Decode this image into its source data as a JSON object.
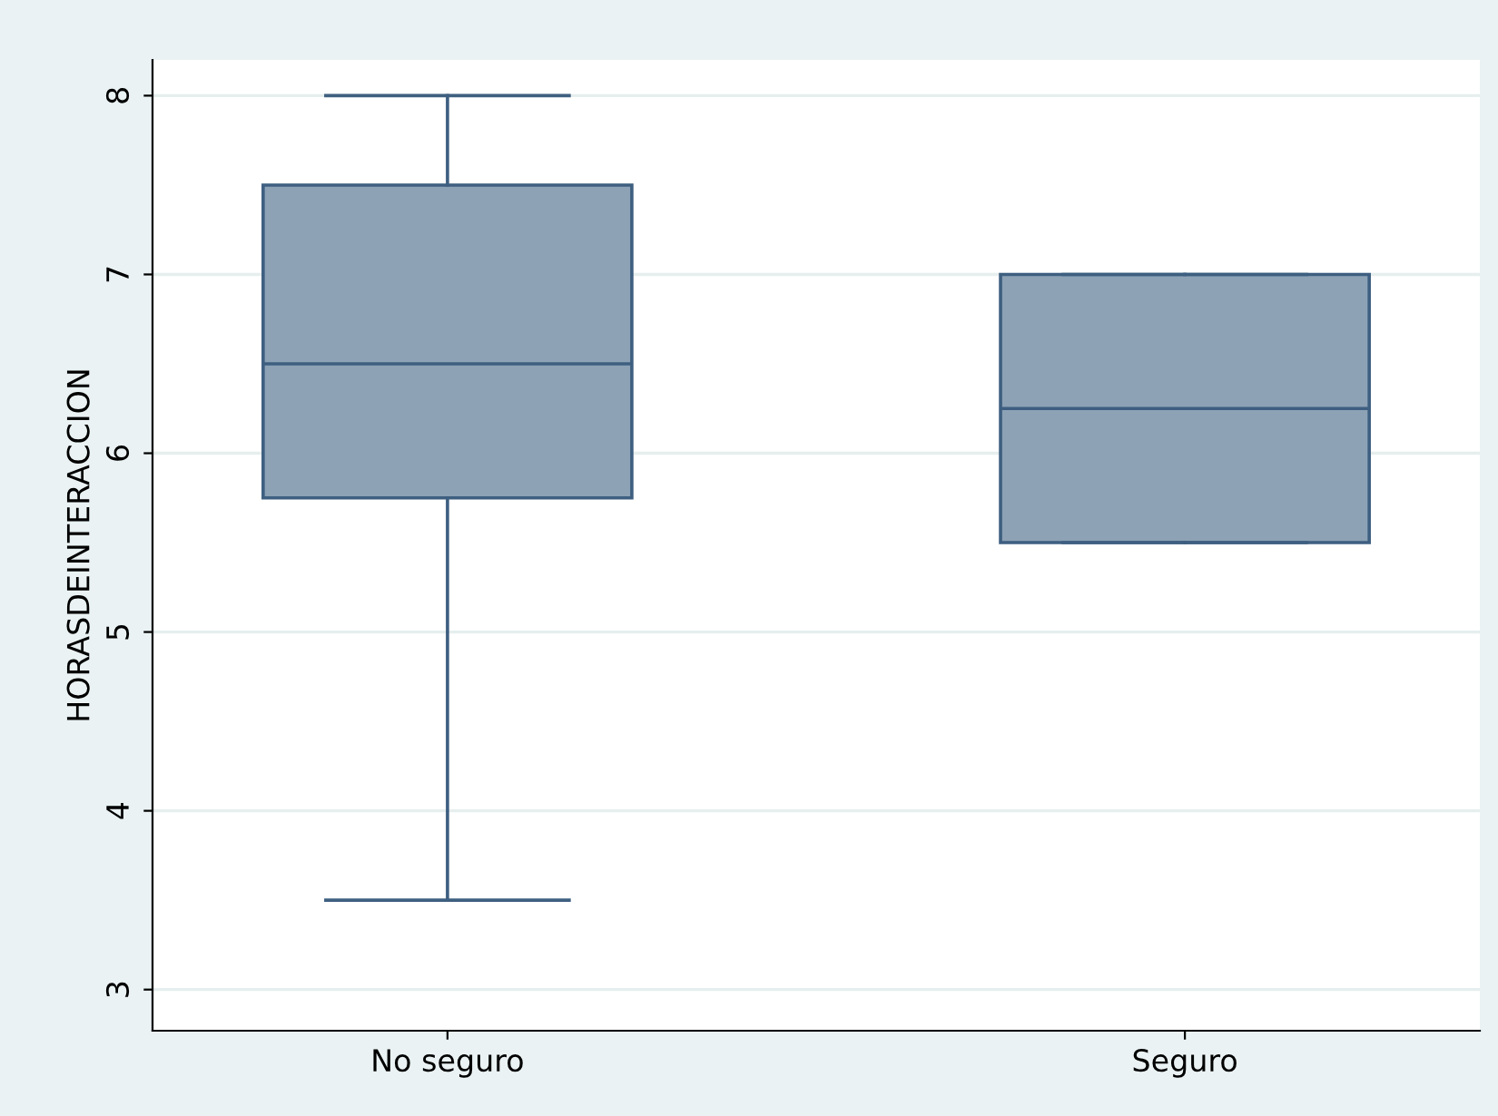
{
  "chart_data": {
    "type": "box",
    "ylabel": "HORASDEINTERACCION",
    "categories": [
      "No seguro",
      "Seguro"
    ],
    "boxes": [
      {
        "low": 3.5,
        "q1": 5.75,
        "median": 6.5,
        "q3": 7.5,
        "high": 8
      },
      {
        "low": 5.5,
        "q1": 5.5,
        "median": 6.25,
        "q3": 7,
        "high": 7
      }
    ],
    "color": "#8da2b5",
    "ylim": [
      2.77,
      8.2
    ],
    "yticks": [
      3,
      4,
      5,
      6,
      7,
      8
    ],
    "grid": "y"
  }
}
